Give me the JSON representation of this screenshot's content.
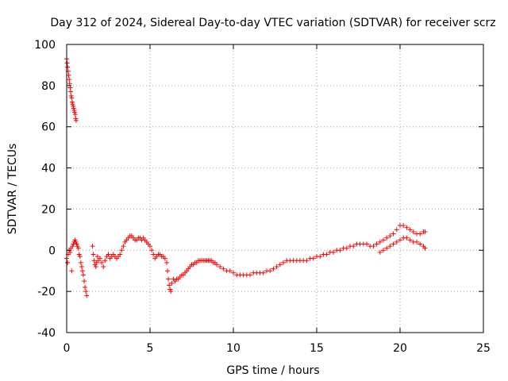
{
  "chart_data": {
    "type": "scatter",
    "title": "Day 312 of 2024, Sidereal Day-to-day VTEC variation (SDTVAR) for receiver scrz",
    "xlabel": "GPS time / hours",
    "ylabel": "SDTVAR / TECUs",
    "xlim": [
      0,
      25
    ],
    "ylim": [
      -40,
      100
    ],
    "xticks": [
      0,
      5,
      10,
      15,
      20,
      25
    ],
    "yticks": [
      -40,
      -20,
      0,
      20,
      40,
      60,
      80,
      100
    ],
    "x_tick_labels": [
      "0",
      "5",
      "10",
      "15",
      "20",
      "25"
    ],
    "y_tick_labels": [
      "-40",
      "-20",
      "0",
      "20",
      "40",
      "60",
      "80",
      "100"
    ],
    "grid": true,
    "marker": "plus",
    "color": "#ff0000",
    "series": [
      {
        "name": "SDTVAR",
        "points": [
          [
            0.0,
            93
          ],
          [
            0.03,
            91
          ],
          [
            0.06,
            89
          ],
          [
            0.09,
            87
          ],
          [
            0.12,
            85
          ],
          [
            0.15,
            83
          ],
          [
            0.18,
            81
          ],
          [
            0.21,
            79
          ],
          [
            0.24,
            77
          ],
          [
            0.27,
            75
          ],
          [
            0.3,
            74
          ],
          [
            0.33,
            72
          ],
          [
            0.36,
            71
          ],
          [
            0.39,
            70
          ],
          [
            0.42,
            69
          ],
          [
            0.45,
            68
          ],
          [
            0.48,
            67
          ],
          [
            0.51,
            66
          ],
          [
            0.54,
            64
          ],
          [
            0.57,
            63
          ],
          [
            0.0,
            -4
          ],
          [
            0.05,
            -6
          ],
          [
            0.1,
            -2
          ],
          [
            0.15,
            0
          ],
          [
            0.2,
            -1
          ],
          [
            0.25,
            1
          ],
          [
            0.3,
            -10
          ],
          [
            0.35,
            2
          ],
          [
            0.4,
            3
          ],
          [
            0.45,
            4
          ],
          [
            0.5,
            5
          ],
          [
            0.55,
            4
          ],
          [
            0.6,
            3
          ],
          [
            0.65,
            2
          ],
          [
            0.7,
            1
          ],
          [
            0.75,
            -2
          ],
          [
            0.8,
            -3
          ],
          [
            0.85,
            -6
          ],
          [
            0.9,
            -8
          ],
          [
            0.95,
            -10
          ],
          [
            1.0,
            -12
          ],
          [
            1.05,
            -15
          ],
          [
            1.1,
            -18
          ],
          [
            1.15,
            -20
          ],
          [
            1.2,
            -22
          ],
          [
            1.55,
            2
          ],
          [
            1.6,
            -2
          ],
          [
            1.65,
            -5
          ],
          [
            1.7,
            -7
          ],
          [
            1.75,
            -8
          ],
          [
            1.8,
            -6
          ],
          [
            1.85,
            -3
          ],
          [
            1.9,
            -5
          ],
          [
            2.0,
            -4
          ],
          [
            2.1,
            -6
          ],
          [
            2.2,
            -8
          ],
          [
            2.3,
            -5
          ],
          [
            2.4,
            -3
          ],
          [
            2.5,
            -2
          ],
          [
            2.6,
            -4
          ],
          [
            2.7,
            -3
          ],
          [
            2.8,
            -2
          ],
          [
            2.9,
            -3
          ],
          [
            3.0,
            -4
          ],
          [
            3.1,
            -3
          ],
          [
            3.2,
            -2
          ],
          [
            3.3,
            0
          ],
          [
            3.4,
            2
          ],
          [
            3.5,
            4
          ],
          [
            3.6,
            5
          ],
          [
            3.7,
            6
          ],
          [
            3.8,
            7
          ],
          [
            3.9,
            7
          ],
          [
            4.0,
            6
          ],
          [
            4.1,
            5
          ],
          [
            4.2,
            5
          ],
          [
            4.3,
            6
          ],
          [
            4.4,
            6
          ],
          [
            4.5,
            5
          ],
          [
            4.6,
            6
          ],
          [
            4.7,
            5
          ],
          [
            4.8,
            4
          ],
          [
            4.9,
            3
          ],
          [
            5.0,
            2
          ],
          [
            5.1,
            0
          ],
          [
            5.2,
            -2
          ],
          [
            5.3,
            -4
          ],
          [
            5.4,
            -3
          ],
          [
            5.5,
            -2
          ],
          [
            5.6,
            -2
          ],
          [
            5.7,
            -3
          ],
          [
            5.8,
            -3
          ],
          [
            5.9,
            -4
          ],
          [
            6.0,
            -6
          ],
          [
            6.05,
            -10
          ],
          [
            6.1,
            -14
          ],
          [
            6.15,
            -17
          ],
          [
            6.2,
            -19
          ],
          [
            6.25,
            -20
          ],
          [
            6.3,
            -16
          ],
          [
            6.4,
            -14
          ],
          [
            6.5,
            -15
          ],
          [
            6.6,
            -14
          ],
          [
            6.7,
            -14
          ],
          [
            6.8,
            -13
          ],
          [
            6.9,
            -12
          ],
          [
            7.0,
            -12
          ],
          [
            7.1,
            -11
          ],
          [
            7.2,
            -10
          ],
          [
            7.3,
            -9
          ],
          [
            7.4,
            -8
          ],
          [
            7.5,
            -7
          ],
          [
            7.6,
            -7
          ],
          [
            7.7,
            -6
          ],
          [
            7.8,
            -6
          ],
          [
            7.9,
            -5
          ],
          [
            8.0,
            -5
          ],
          [
            8.1,
            -5
          ],
          [
            8.2,
            -5
          ],
          [
            8.3,
            -5
          ],
          [
            8.4,
            -5
          ],
          [
            8.5,
            -5
          ],
          [
            8.6,
            -5
          ],
          [
            8.7,
            -5
          ],
          [
            8.8,
            -6
          ],
          [
            8.9,
            -6
          ],
          [
            9.0,
            -7
          ],
          [
            9.2,
            -8
          ],
          [
            9.4,
            -9
          ],
          [
            9.6,
            -10
          ],
          [
            9.8,
            -10
          ],
          [
            10.0,
            -11
          ],
          [
            10.2,
            -12
          ],
          [
            10.4,
            -12
          ],
          [
            10.6,
            -12
          ],
          [
            10.8,
            -12
          ],
          [
            11.0,
            -12
          ],
          [
            11.2,
            -11
          ],
          [
            11.4,
            -11
          ],
          [
            11.6,
            -11
          ],
          [
            11.8,
            -11
          ],
          [
            12.0,
            -10
          ],
          [
            12.2,
            -10
          ],
          [
            12.4,
            -9
          ],
          [
            12.6,
            -8
          ],
          [
            12.8,
            -7
          ],
          [
            13.0,
            -6
          ],
          [
            13.2,
            -5
          ],
          [
            13.4,
            -5
          ],
          [
            13.6,
            -5
          ],
          [
            13.8,
            -5
          ],
          [
            14.0,
            -5
          ],
          [
            14.2,
            -5
          ],
          [
            14.4,
            -5
          ],
          [
            14.6,
            -4
          ],
          [
            14.8,
            -4
          ],
          [
            15.0,
            -3
          ],
          [
            15.2,
            -3
          ],
          [
            15.4,
            -2
          ],
          [
            15.6,
            -2
          ],
          [
            15.8,
            -1
          ],
          [
            16.0,
            -1
          ],
          [
            16.2,
            0
          ],
          [
            16.4,
            0
          ],
          [
            16.6,
            1
          ],
          [
            16.8,
            1
          ],
          [
            17.0,
            2
          ],
          [
            17.2,
            2
          ],
          [
            17.4,
            3
          ],
          [
            17.6,
            3
          ],
          [
            17.8,
            3
          ],
          [
            18.0,
            3
          ],
          [
            18.2,
            2
          ],
          [
            18.4,
            2
          ],
          [
            18.6,
            3
          ],
          [
            18.8,
            4
          ],
          [
            19.0,
            5
          ],
          [
            19.2,
            6
          ],
          [
            19.4,
            7
          ],
          [
            19.6,
            8
          ],
          [
            19.8,
            10
          ],
          [
            20.0,
            12
          ],
          [
            20.2,
            12
          ],
          [
            20.4,
            11
          ],
          [
            20.6,
            10
          ],
          [
            20.8,
            9
          ],
          [
            21.0,
            8
          ],
          [
            21.2,
            8
          ],
          [
            21.4,
            9
          ],
          [
            21.5,
            9
          ],
          [
            18.8,
            -1
          ],
          [
            19.0,
            0
          ],
          [
            19.2,
            1
          ],
          [
            19.4,
            2
          ],
          [
            19.6,
            3
          ],
          [
            19.8,
            4
          ],
          [
            20.0,
            5
          ],
          [
            20.2,
            6
          ],
          [
            20.4,
            6
          ],
          [
            20.6,
            5
          ],
          [
            20.8,
            4
          ],
          [
            21.0,
            4
          ],
          [
            21.2,
            3
          ],
          [
            21.4,
            2
          ],
          [
            21.5,
            1
          ]
        ]
      }
    ]
  }
}
